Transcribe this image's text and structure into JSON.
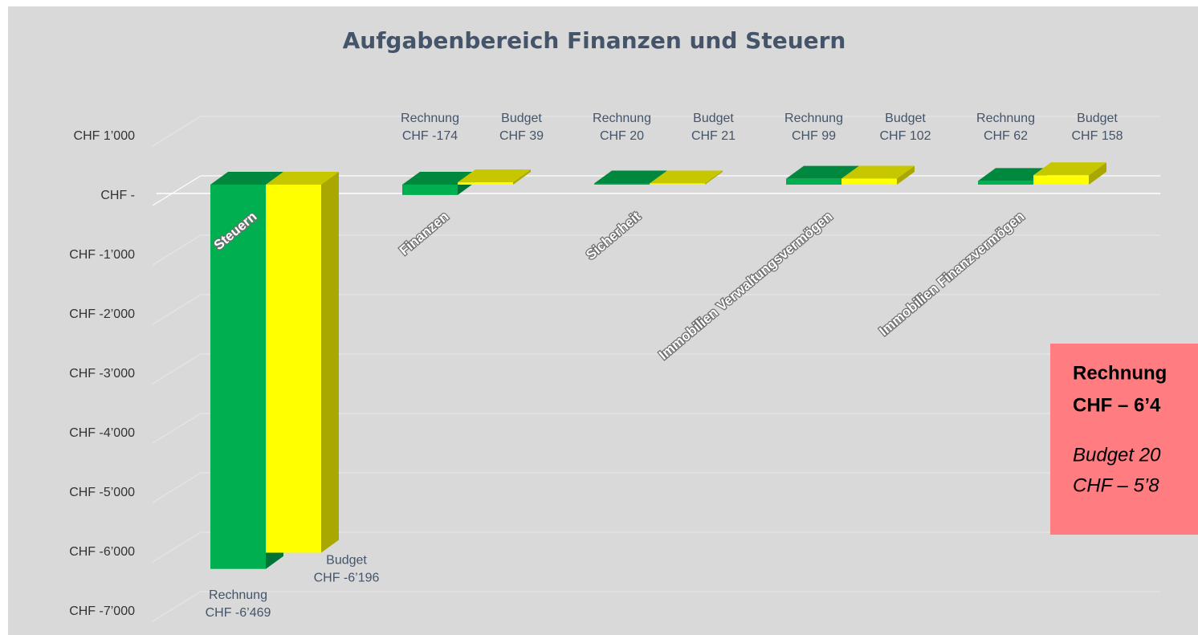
{
  "chart_data": {
    "type": "bar",
    "title": "Aufgabenbereich Finanzen und Steuern",
    "categories": [
      "Steuern",
      "Finanzen",
      "Sicherheit",
      "Immobilien Verwaltungsvermögen",
      "Immobilien Finanzvermögen"
    ],
    "series": [
      {
        "name": "Rechnung",
        "color": "#00b050",
        "values": [
          -6469,
          -174,
          20,
          99,
          62
        ],
        "value_labels": [
          "CHF -6’469",
          "CHF -174",
          "CHF 20",
          "CHF 99",
          "CHF 62"
        ]
      },
      {
        "name": "Budget",
        "color": "#ffff00",
        "values": [
          -6196,
          39,
          21,
          102,
          158
        ],
        "value_labels": [
          "CHF -6’196",
          "CHF 39",
          "CHF 21",
          "CHF 102",
          "CHF 158"
        ]
      }
    ],
    "ylim": [
      -7000,
      1000
    ],
    "yticks": [
      {
        "value": 1000,
        "label": "CHF 1’000"
      },
      {
        "value": 0,
        "label": "CHF -"
      },
      {
        "value": -1000,
        "label": "CHF -1’000"
      },
      {
        "value": -2000,
        "label": "CHF -2’000"
      },
      {
        "value": -3000,
        "label": "CHF -3’000"
      },
      {
        "value": -4000,
        "label": "CHF -4’000"
      },
      {
        "value": -5000,
        "label": "CHF -5’000"
      },
      {
        "value": -6000,
        "label": "CHF -6’000"
      },
      {
        "value": -7000,
        "label": "CHF -7’000"
      }
    ],
    "grid": true,
    "annotation": {
      "color": "#ff7c80",
      "lines": [
        "Rechnung",
        "CHF – 6’4",
        "Budget 20",
        "CHF – 5’8"
      ]
    }
  }
}
